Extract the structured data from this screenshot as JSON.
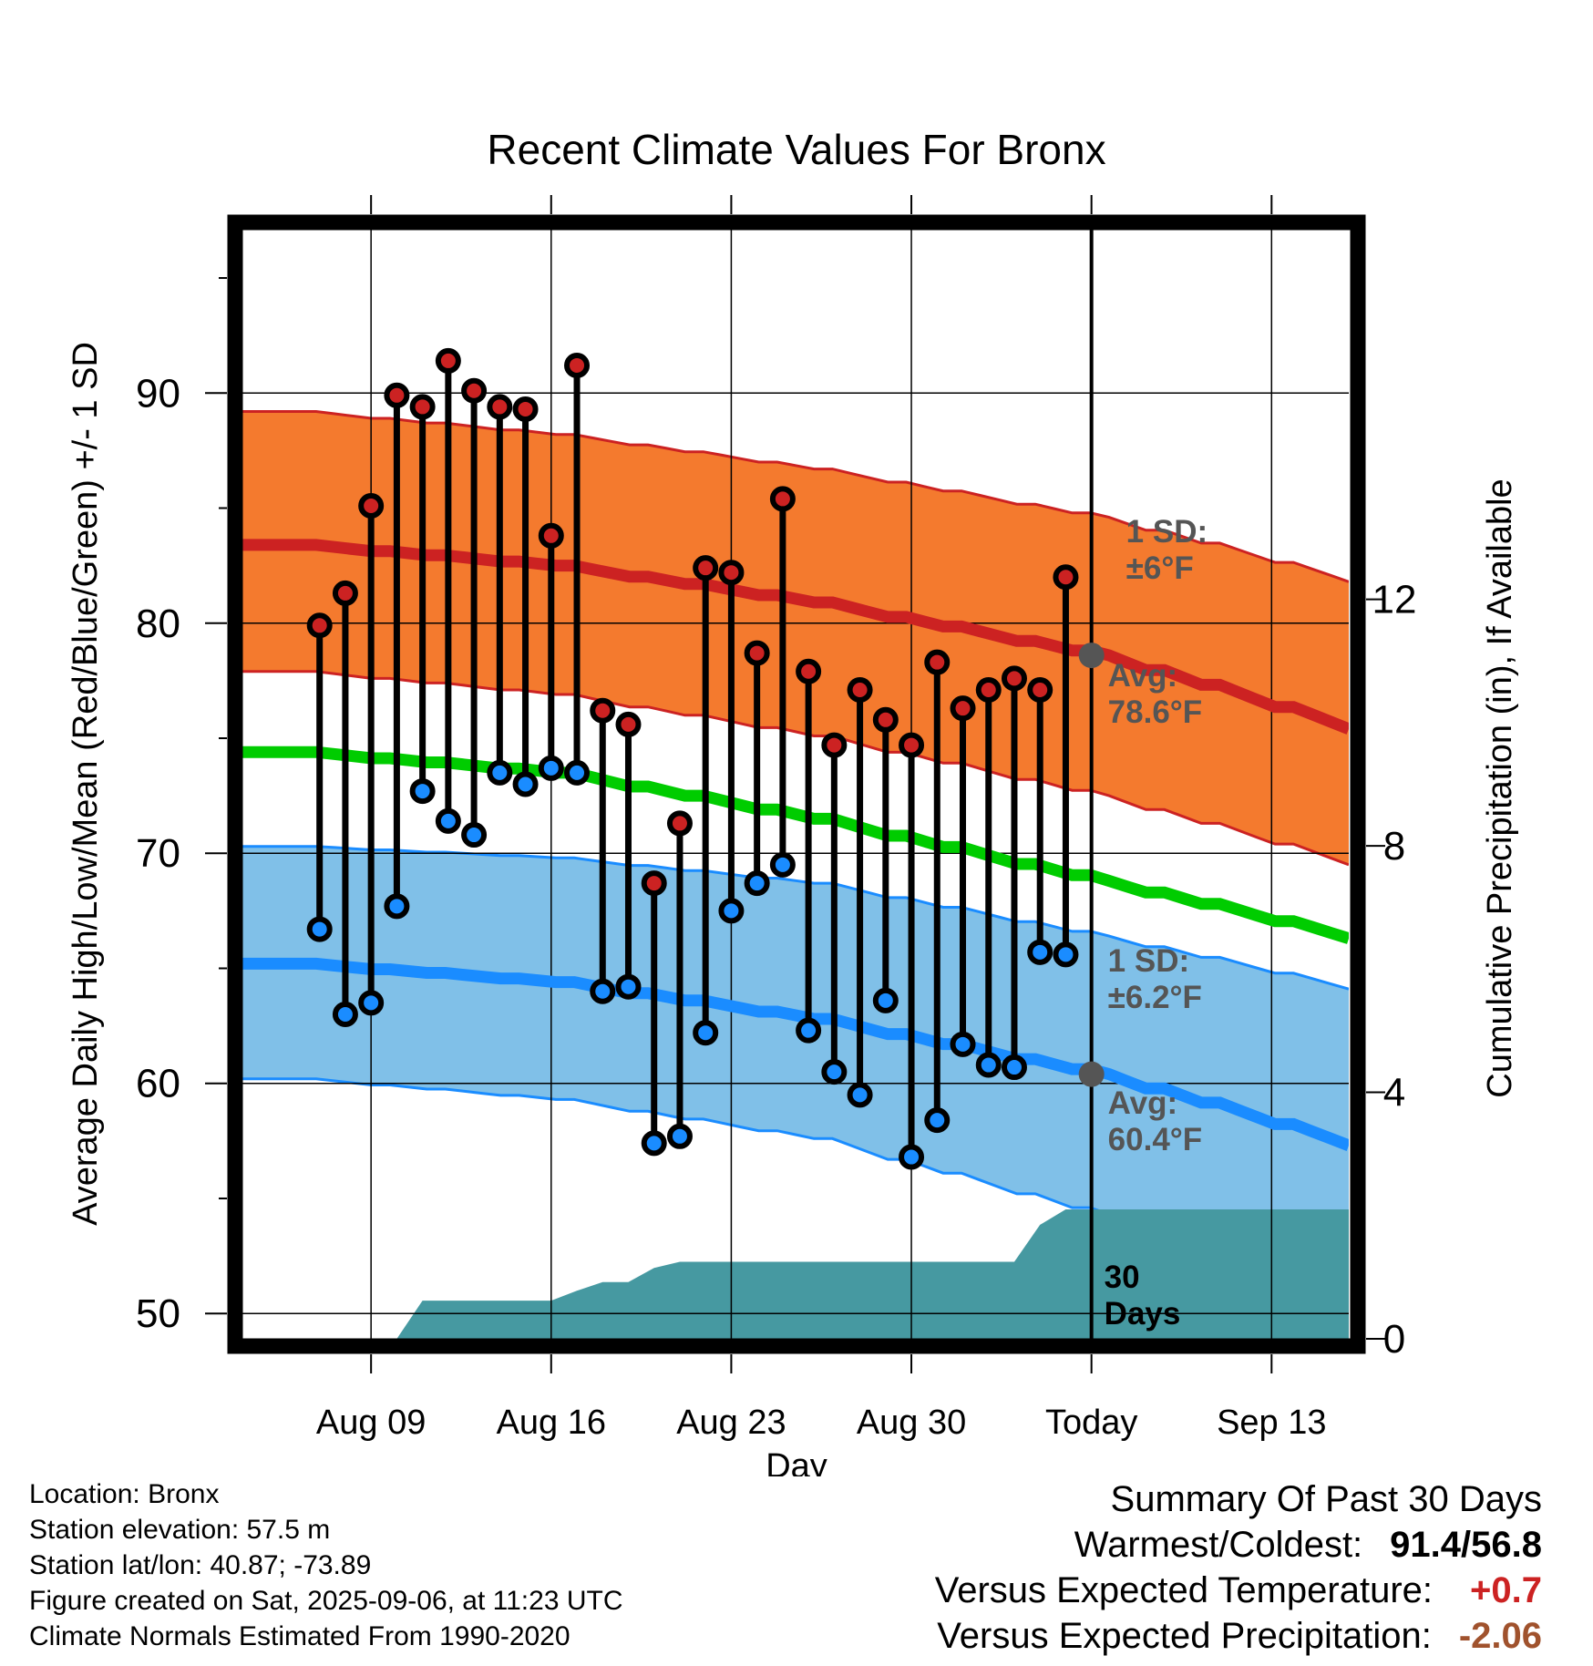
{
  "chart_data": {
    "type": "line",
    "title": "Recent Climate Values For Bronx",
    "xlabel": "Day",
    "ylabel": "Average Daily High/Low/Mean (Red/Blue/Green) +/- 1 SD",
    "y2label": "Cumulative Precipitation (in), If Available",
    "ylim": [
      48.9,
      97.1
    ],
    "y2lim": [
      0,
      18
    ],
    "xlim": [
      "2025-08-04",
      "2025-09-16"
    ],
    "yticks": [
      50,
      60,
      70,
      80,
      90
    ],
    "y2ticks": [
      0,
      4,
      8,
      12
    ],
    "xticks": [
      {
        "date": "2025-08-09",
        "label": "Aug 09"
      },
      {
        "date": "2025-08-16",
        "label": "Aug 16"
      },
      {
        "date": "2025-08-23",
        "label": "Aug 23"
      },
      {
        "date": "2025-08-30",
        "label": "Aug 30"
      },
      {
        "date": "2025-09-06",
        "label": "Today"
      },
      {
        "date": "2025-09-13",
        "label": "Sep 13"
      }
    ],
    "today": "2025-09-06",
    "normals_dates": [
      "2025-08-06",
      "2025-08-16",
      "2025-08-26",
      "2025-09-06",
      "2025-09-16"
    ],
    "normal_high": [
      83.4,
      82.5,
      80.9,
      78.6,
      75.4
    ],
    "normal_high_upper": [
      89.2,
      88.2,
      86.7,
      84.6,
      81.8
    ],
    "normal_high_lower": [
      77.9,
      76.9,
      75.1,
      72.5,
      69.5
    ],
    "normal_mean": [
      74.4,
      73.5,
      71.5,
      68.8,
      66.3
    ],
    "normal_low": [
      65.2,
      64.4,
      62.8,
      60.4,
      57.3
    ],
    "normal_low_upper": [
      70.3,
      69.8,
      68.7,
      66.4,
      64.1
    ],
    "normal_low_lower": [
      60.2,
      59.3,
      57.6,
      54.3,
      50.8
    ],
    "daily_dates": [
      "2025-08-07",
      "2025-08-08",
      "2025-08-09",
      "2025-08-10",
      "2025-08-11",
      "2025-08-12",
      "2025-08-13",
      "2025-08-14",
      "2025-08-15",
      "2025-08-16",
      "2025-08-17",
      "2025-08-18",
      "2025-08-19",
      "2025-08-20",
      "2025-08-21",
      "2025-08-22",
      "2025-08-23",
      "2025-08-24",
      "2025-08-25",
      "2025-08-26",
      "2025-08-27",
      "2025-08-28",
      "2025-08-29",
      "2025-08-30",
      "2025-08-31",
      "2025-09-01",
      "2025-09-02",
      "2025-09-03",
      "2025-09-04",
      "2025-09-05"
    ],
    "daily_high": [
      79.9,
      81.3,
      85.1,
      89.9,
      89.4,
      91.4,
      90.1,
      89.4,
      89.3,
      83.8,
      91.2,
      76.2,
      75.6,
      68.7,
      71.3,
      82.4,
      82.2,
      78.7,
      85.4,
      77.9,
      74.7,
      77.1,
      75.8,
      74.7,
      78.3,
      76.3,
      77.1,
      77.6,
      77.1,
      82.0
    ],
    "daily_low": [
      66.7,
      63.0,
      63.5,
      67.7,
      72.7,
      71.4,
      70.8,
      73.5,
      73.0,
      73.7,
      73.5,
      64.0,
      64.2,
      57.4,
      57.7,
      62.2,
      67.5,
      68.7,
      69.5,
      62.3,
      60.5,
      59.5,
      63.6,
      56.8,
      58.4,
      61.7,
      60.8,
      60.7,
      65.7,
      65.6
    ],
    "precip_dates": [
      "2025-08-08",
      "2025-08-10",
      "2025-08-11",
      "2025-08-16",
      "2025-08-17",
      "2025-08-18",
      "2025-08-19",
      "2025-08-20",
      "2025-08-21",
      "2025-08-22",
      "2025-09-02",
      "2025-09-03",
      "2025-09-04",
      "2025-09-05",
      "2025-09-16"
    ],
    "cumulative_precip": [
      0,
      0,
      0.62,
      0.62,
      0.78,
      0.92,
      0.92,
      1.15,
      1.25,
      1.25,
      1.25,
      1.25,
      1.85,
      2.1,
      2.1
    ],
    "annotations": {
      "high_sd": [
        "1 SD:",
        "±6°F"
      ],
      "high_avg": [
        "Avg:",
        "78.6°F"
      ],
      "low_sd": [
        "1 SD:",
        "±6.2°F"
      ],
      "low_avg": [
        "Avg:",
        "60.4°F"
      ],
      "precip_days": [
        "30",
        "Days"
      ]
    },
    "colors": {
      "high": "#cc2222",
      "high_band": "#f47a2e",
      "low": "#1a8cff",
      "low_band": "#80c0e8",
      "mean": "#00cc00",
      "precip": "#4699a1",
      "annotation": "#555555",
      "today_marker": "#555555"
    }
  },
  "info": {
    "location": "Location: Bronx",
    "elevation": "Station elevation: 57.5 m",
    "latlon": "Station lat/lon: 40.87; -73.89",
    "created": "Figure created on Sat, 2025-09-06, at 11:23 UTC",
    "normals": "Climate Normals Estimated From 1990-2020"
  },
  "summary": {
    "title": "Summary Of Past 30 Days",
    "warm_cold_label": "Warmest/Coldest:",
    "warm_cold_value": "91.4/56.8",
    "temp_label": "Versus Expected Temperature:",
    "temp_value": "+0.7",
    "temp_color": "#cc2222",
    "precip_label": "Versus Expected Precipitation:",
    "precip_value": "-2.06",
    "precip_color": "#a0522d"
  }
}
